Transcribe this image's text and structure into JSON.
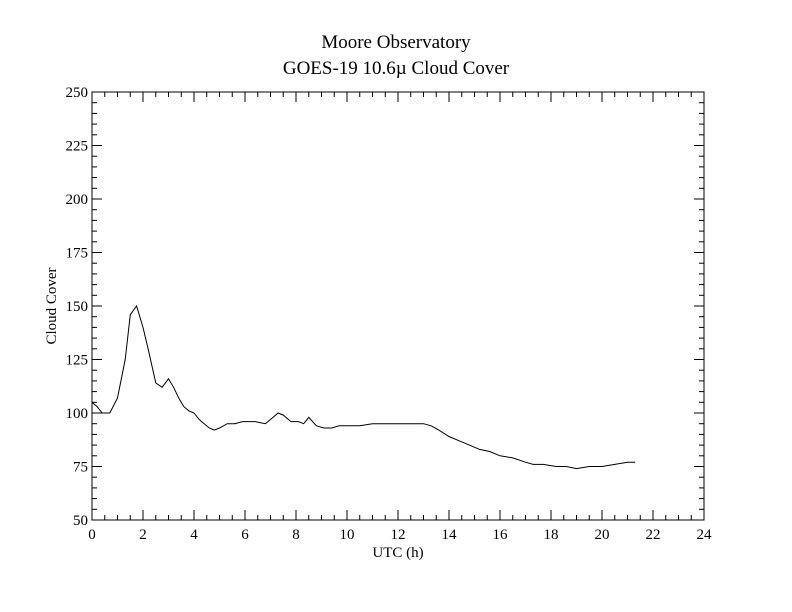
{
  "chart_data": {
    "type": "line",
    "title": "Moore Observatory",
    "subtitle": "GOES-19 10.6µ Cloud Cover",
    "xlabel": "UTC (h)",
    "ylabel": "Cloud Cover",
    "xlim": [
      0,
      24
    ],
    "ylim": [
      50,
      250
    ],
    "xticks": [
      0,
      2,
      4,
      6,
      8,
      10,
      12,
      14,
      16,
      18,
      20,
      22,
      24
    ],
    "yticks": [
      50,
      75,
      100,
      125,
      150,
      175,
      200,
      225,
      250
    ],
    "grid": false,
    "line_color": "#000000",
    "series": [
      {
        "x": [
          0.0,
          0.2,
          0.4,
          0.7,
          1.0,
          1.3,
          1.5,
          1.75,
          2.0,
          2.2,
          2.5,
          2.75,
          3.0,
          3.2,
          3.4,
          3.6,
          3.8,
          4.0,
          4.2,
          4.4,
          4.6,
          4.8,
          5.0,
          5.3,
          5.6,
          5.9,
          6.2,
          6.4,
          6.8,
          7.1,
          7.3,
          7.5,
          7.8,
          8.1,
          8.3,
          8.5,
          8.8,
          9.1,
          9.4,
          9.7,
          10.0,
          10.5,
          11.0,
          11.5,
          12.0,
          12.5,
          12.8,
          13.0,
          13.3,
          13.6,
          14.0,
          14.4,
          14.8,
          15.2,
          15.6,
          16.0,
          16.5,
          17.0,
          17.3,
          17.7,
          18.2,
          18.6,
          19.0,
          19.5,
          20.0,
          20.5,
          21.0,
          21.3
        ],
        "values": [
          105,
          103,
          100,
          100,
          107,
          125,
          146,
          150,
          140,
          130,
          114,
          112,
          116,
          112,
          107,
          103,
          101,
          100,
          97,
          95,
          93,
          92,
          93,
          95,
          95,
          96,
          96,
          96,
          95,
          98,
          100,
          99,
          96,
          96,
          95,
          98,
          94,
          93,
          93,
          94,
          94,
          94,
          95,
          95,
          95,
          95,
          95,
          95,
          94,
          92,
          89,
          87,
          85,
          83,
          82,
          80,
          79,
          77,
          76,
          76,
          75,
          75,
          74,
          75,
          75,
          76,
          77,
          77
        ]
      }
    ]
  }
}
